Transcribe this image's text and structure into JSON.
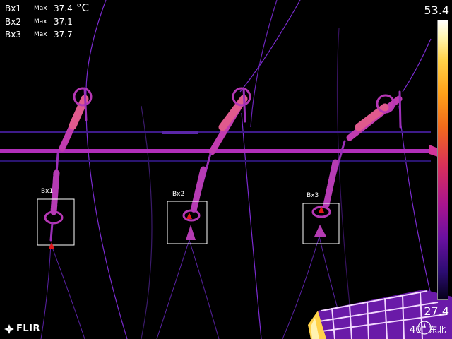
{
  "measurements": [
    {
      "id": "Bx1",
      "label": "Max",
      "value": "37.4"
    },
    {
      "id": "Bx2",
      "label": "Max",
      "value": "37.1"
    },
    {
      "id": "Bx3",
      "label": "Max",
      "value": "37.7"
    }
  ],
  "unit": "°C",
  "scale": {
    "max": "53.4",
    "min": "27.4"
  },
  "boxes": [
    "Bx1",
    "Bx2",
    "Bx3"
  ],
  "brand": "FLIR",
  "lens": "40°",
  "compass": "东北",
  "palette": {
    "background": "#000000",
    "cool": "#7a1cc7",
    "warm": "#d2369a",
    "hot": "#ffd24a",
    "marker": "#e0191b"
  }
}
